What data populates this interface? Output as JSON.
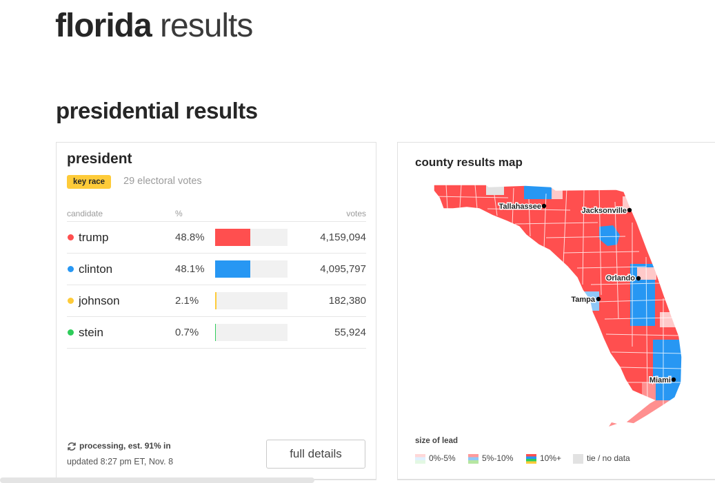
{
  "page": {
    "title_state": "florida",
    "title_rest": "results",
    "section_title": "presidential results"
  },
  "president": {
    "title": "president",
    "badge": "key race",
    "electoral_votes": "29 electoral votes",
    "col_candidate": "candidate",
    "col_pct": "%",
    "col_votes": "votes",
    "candidates": [
      {
        "name": "trump",
        "pct": "48.8%",
        "votes": "4,159,094",
        "share": 0.488,
        "color": "#ff4f4f"
      },
      {
        "name": "clinton",
        "pct": "48.1%",
        "votes": "4,095,797",
        "share": 0.481,
        "color": "#2797f3"
      },
      {
        "name": "johnson",
        "pct": "2.1%",
        "votes": "182,380",
        "share": 0.021,
        "color": "#fecb39"
      },
      {
        "name": "stein",
        "pct": "0.7%",
        "votes": "55,924",
        "share": 0.007,
        "color": "#2ecc5a"
      }
    ],
    "status": "processing, est. 91% in",
    "updated": "updated 8:27 pm ET, Nov. 8",
    "full_details": "full details"
  },
  "map": {
    "title": "county results map",
    "cities": {
      "tallahassee": "Tallahassee",
      "jacksonville": "Jacksonville",
      "orlando": "Orlando",
      "tampa": "Tampa",
      "miami": "Miami"
    },
    "legend_title": "size of lead",
    "legend": {
      "l1": "0%-5%",
      "l2": "5%-10%",
      "l3": "10%+",
      "l4": "tie / no data"
    },
    "colors": {
      "rep": "#ff4f4f",
      "dem": "#2797f3",
      "rep_light": "#ffc9c9",
      "dem_light": "#8fc8f7",
      "rep_mid": "#ff8f8f",
      "tie": "#e2e2e2"
    }
  }
}
